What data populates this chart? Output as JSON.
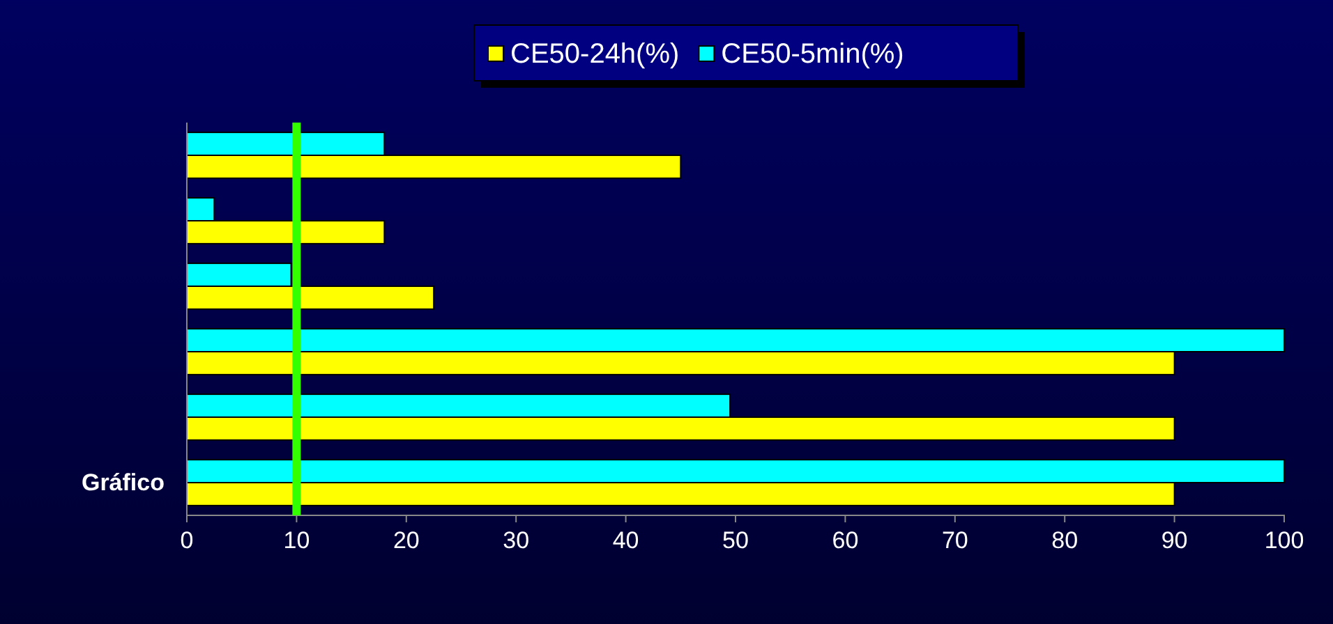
{
  "chart_data": {
    "type": "bar",
    "orientation": "horizontal",
    "categories": [
      null,
      null,
      null,
      null,
      null,
      "Gráfico"
    ],
    "series": [
      {
        "name": "CE50-24h(%)",
        "color": "#ffff00",
        "values": [
          45,
          18,
          22.5,
          90,
          90,
          90
        ]
      },
      {
        "name": "CE50-5min(%)",
        "color": "#00ffff",
        "values": [
          18,
          2.5,
          9.5,
          100,
          49.5,
          100
        ]
      }
    ],
    "xlim": [
      0,
      100
    ],
    "xticks": [
      0,
      10,
      20,
      30,
      40,
      50,
      60,
      70,
      80,
      90,
      100
    ],
    "ref_lines": [
      {
        "axis": "x",
        "value": 10,
        "color": "#33ff00"
      }
    ],
    "legend": "top",
    "grid": false
  }
}
